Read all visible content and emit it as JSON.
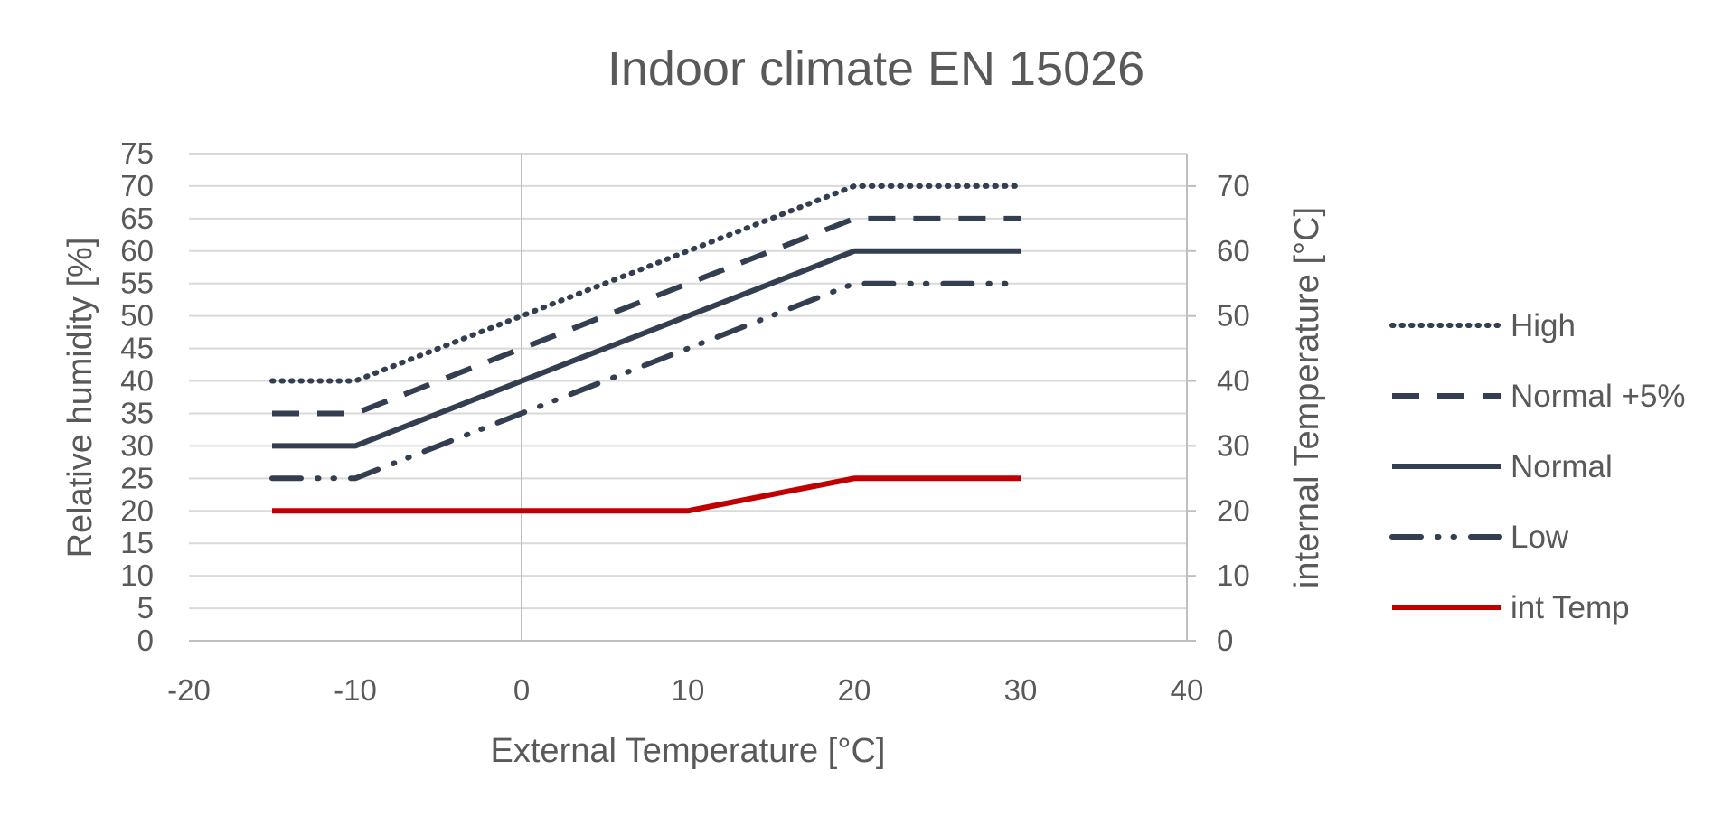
{
  "chart_data": {
    "type": "line",
    "title": "Indoor climate EN 15026",
    "xlabel": "External Temperature [°C]",
    "ylabel": "Relative humidity [%]",
    "y2label": "internal Temperature  [°C]",
    "xlim": [
      -20,
      40
    ],
    "ylim": [
      0,
      75
    ],
    "y2lim": [
      0,
      75
    ],
    "x_ticks": [
      -20,
      -10,
      0,
      10,
      20,
      30,
      40
    ],
    "y_ticks": [
      0,
      5,
      10,
      15,
      20,
      25,
      30,
      35,
      40,
      45,
      50,
      55,
      60,
      65,
      70,
      75
    ],
    "y2_ticks": [
      0,
      10,
      20,
      30,
      40,
      50,
      60,
      70
    ],
    "grid": true,
    "legend_position": "right",
    "series": [
      {
        "name": "High",
        "axis": "y",
        "style": "dotted",
        "color": "#333f50",
        "x": [
          -15,
          -10,
          20,
          30
        ],
        "y": [
          40,
          40,
          70,
          70
        ]
      },
      {
        "name": "Normal +5%",
        "axis": "y",
        "style": "dashed",
        "color": "#333f50",
        "x": [
          -15,
          -10,
          20,
          30
        ],
        "y": [
          35,
          35,
          65,
          65
        ]
      },
      {
        "name": "Normal",
        "axis": "y",
        "style": "solid",
        "color": "#333f50",
        "x": [
          -15,
          -10,
          20,
          30
        ],
        "y": [
          30,
          30,
          60,
          60
        ]
      },
      {
        "name": "Low",
        "axis": "y",
        "style": "dashdotdot",
        "color": "#333f50",
        "x": [
          -15,
          -10,
          20,
          30
        ],
        "y": [
          25,
          25,
          55,
          55
        ]
      },
      {
        "name": "int Temp",
        "axis": "y2",
        "style": "solid",
        "color": "#c00000",
        "x": [
          -15,
          10,
          20,
          30
        ],
        "y": [
          20,
          20,
          25,
          25
        ]
      }
    ]
  }
}
